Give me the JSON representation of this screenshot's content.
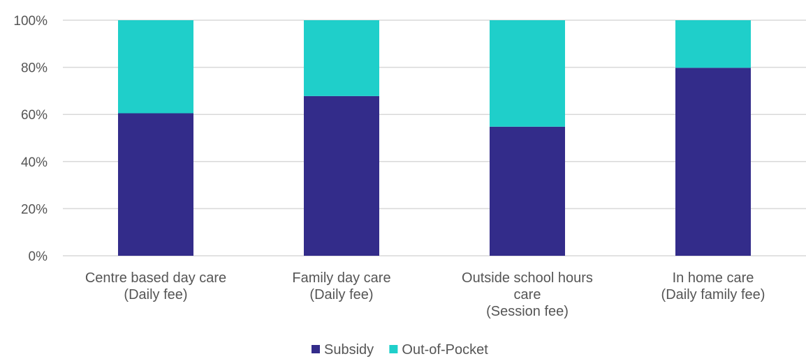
{
  "chart_data": {
    "type": "bar",
    "stacked": true,
    "percent_stacked": true,
    "categories": [
      [
        "Centre based day care",
        "(Daily fee)"
      ],
      [
        "Family day care",
        "(Daily fee)"
      ],
      [
        "Outside school hours",
        "care",
        "(Session fee)"
      ],
      [
        "In home care",
        "(Daily family fee)"
      ]
    ],
    "series": [
      {
        "name": "Subsidy",
        "values": [
          60.5,
          67.8,
          54.8,
          79.8
        ],
        "color": "#332c8a"
      },
      {
        "name": "Out-of-Pocket",
        "values": [
          39.5,
          32.2,
          45.2,
          20.2
        ],
        "color": "#1fcfca"
      }
    ],
    "y_ticks": [
      "0%",
      "20%",
      "40%",
      "60%",
      "80%",
      "100%"
    ],
    "ylim": [
      0,
      100
    ],
    "grid": true,
    "legend_position": "bottom",
    "title": "",
    "xlabel": "",
    "ylabel": ""
  }
}
